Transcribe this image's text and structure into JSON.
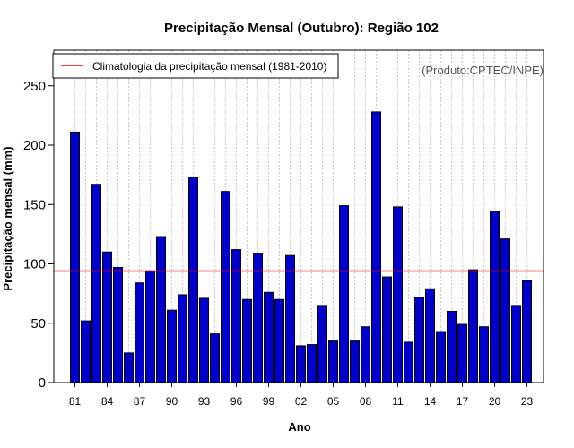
{
  "chart_data": {
    "type": "bar",
    "title": "Precipitação Mensal (Outubro): Região 102",
    "xlabel": "Ano",
    "ylabel": "Precipitação mensal (mm)",
    "credit": "(Produto:CPTEC/INPE)",
    "legend": {
      "label": "Climatologia da precipitação mensal (1981-2010)",
      "placement": "top-left"
    },
    "colors": {
      "bar_fill": "#0000cc",
      "bar_edge": "#000000",
      "climatology_line": "#ff0000",
      "grid": "#c8c8c8"
    },
    "ylim": [
      0,
      280
    ],
    "yticks": [
      0,
      50,
      100,
      150,
      200,
      250
    ],
    "ytick_labels": [
      "0",
      "50",
      "100",
      "150",
      "200",
      "250"
    ],
    "climatology": 94,
    "categories": [
      1981,
      1982,
      1983,
      1984,
      1985,
      1986,
      1987,
      1988,
      1989,
      1990,
      1991,
      1992,
      1993,
      1994,
      1995,
      1996,
      1997,
      1998,
      1999,
      2000,
      2001,
      2002,
      2003,
      2004,
      2005,
      2006,
      2007,
      2008,
      2009,
      2010,
      2011,
      2012,
      2013,
      2014,
      2015,
      2016,
      2017,
      2018,
      2019,
      2020,
      2021,
      2022,
      2023
    ],
    "values": [
      211,
      52,
      167,
      110,
      97,
      25,
      84,
      94,
      123,
      61,
      74,
      173,
      71,
      41,
      161,
      112,
      70,
      109,
      76,
      70,
      107,
      31,
      32,
      65,
      35,
      149,
      35,
      47,
      228,
      89,
      148,
      34,
      72,
      79,
      43,
      60,
      49,
      95,
      47,
      144,
      121,
      65,
      86
    ],
    "xtick_labels": [
      "81",
      "84",
      "87",
      "90",
      "93",
      "96",
      "99",
      "02",
      "05",
      "08",
      "11",
      "14",
      "17",
      "20",
      "23"
    ],
    "grid": "vertical dotted"
  }
}
